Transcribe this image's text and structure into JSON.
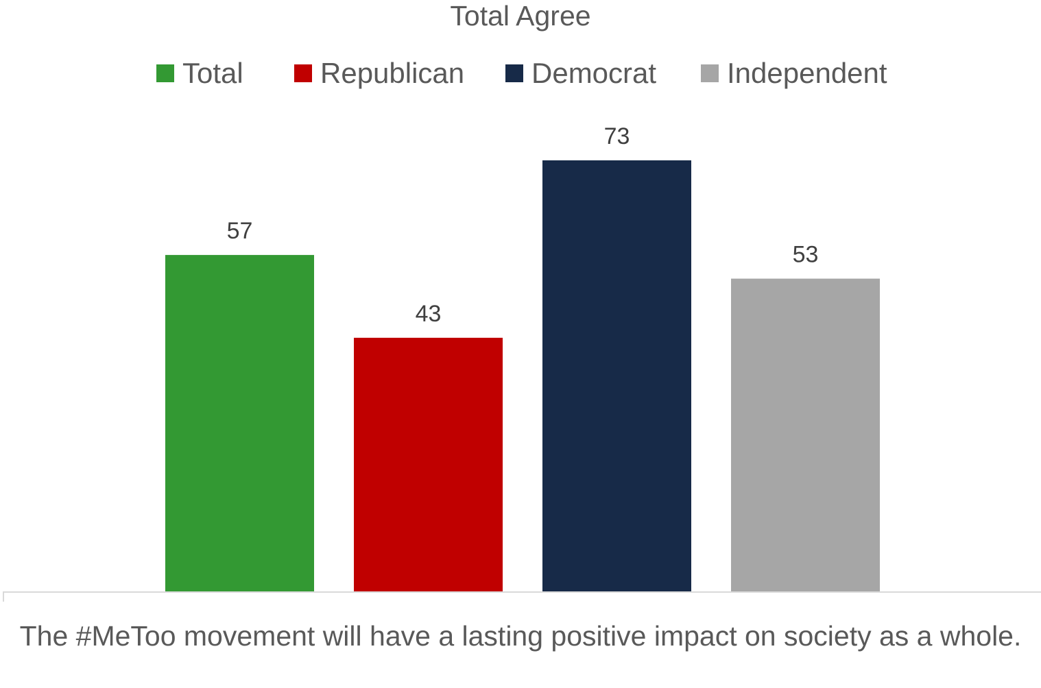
{
  "chart_data": {
    "type": "bar",
    "title": "Total Agree",
    "categories": [
      "The #MeToo movement will have a lasting positive impact on society as a whole."
    ],
    "series": [
      {
        "name": "Total",
        "values": [
          57
        ],
        "color": "#339933"
      },
      {
        "name": "Republican",
        "values": [
          43
        ],
        "color": "#C00000"
      },
      {
        "name": "Democrat",
        "values": [
          73
        ],
        "color": "#172A48"
      },
      {
        "name": "Independent",
        "values": [
          53
        ],
        "color": "#A6A6A6"
      }
    ],
    "data_labels": [
      "57",
      "43",
      "73",
      "53"
    ],
    "ylim": [
      0,
      100
    ],
    "grid": false,
    "legend_position": "top"
  }
}
